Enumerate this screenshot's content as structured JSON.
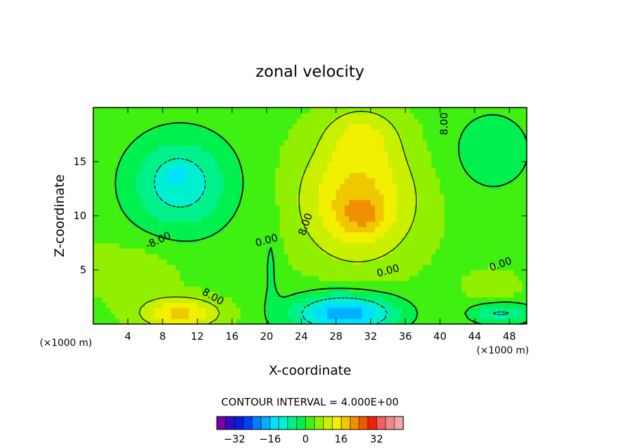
{
  "chart_data": {
    "type": "heatmap",
    "title": "zonal velocity",
    "xlabel": "X-coordinate",
    "ylabel": "Z-coordinate",
    "x_unit_left": "(×1000 m)",
    "x_unit_right": "(×1000 m)",
    "xlim": [
      0,
      50
    ],
    "ylim": [
      0,
      20
    ],
    "x_ticks": [
      4,
      8,
      12,
      16,
      20,
      24,
      28,
      32,
      36,
      40,
      44,
      48
    ],
    "y_ticks": [
      5,
      10,
      15
    ],
    "contour_interval_text": "CONTOUR INTERVAL = 4.000E+00",
    "contour_labels": [
      {
        "text": "8.00",
        "x": 40.5,
        "y": 18.5,
        "angle": -90
      },
      {
        "text": "-8.00",
        "x": 7.5,
        "y": 7.7,
        "angle": -25
      },
      {
        "text": "0.00",
        "x": 20.0,
        "y": 7.7,
        "angle": -15
      },
      {
        "text": "8.00",
        "x": 24.5,
        "y": 9.2,
        "angle": -70
      },
      {
        "text": "0.00",
        "x": 34.0,
        "y": 4.9,
        "angle": -15
      },
      {
        "text": "0.00",
        "x": 47.0,
        "y": 5.5,
        "angle": -20
      },
      {
        "text": "8.00",
        "x": 13.8,
        "y": 2.5,
        "angle": 30
      }
    ],
    "levels": [
      -36,
      -32,
      -28,
      -24,
      -20,
      -16,
      -12,
      -8,
      -4,
      0,
      4,
      8,
      12,
      16,
      20,
      24,
      28,
      32,
      36
    ],
    "colorbar_labels": [
      -32,
      -16,
      0,
      16,
      32
    ],
    "colorbar_colors": [
      "#7a00a8",
      "#2d0dc0",
      "#0a1ae0",
      "#0040f5",
      "#0080ff",
      "#00b0ff",
      "#00e0ff",
      "#00f0d0",
      "#00f08a",
      "#00f050",
      "#40f010",
      "#90f000",
      "#c8f000",
      "#f0f000",
      "#f0c800",
      "#f09000",
      "#f05800",
      "#f02000",
      "#f06060",
      "#f08a8a",
      "#f0a8a8"
    ],
    "field_features": [
      {
        "kind": "base",
        "value": 3
      },
      {
        "kind": "blob",
        "x": 30.5,
        "y": 11.5,
        "sx": 6.5,
        "sy": 5.5,
        "amp": 15
      },
      {
        "kind": "blob",
        "x": 31.0,
        "y": 17.5,
        "sx": 4.0,
        "sy": 2.5,
        "amp": 7
      },
      {
        "kind": "blob",
        "x": 31.0,
        "y": 10.0,
        "sx": 2.5,
        "sy": 1.5,
        "amp": 6
      },
      {
        "kind": "blob",
        "x": 10.0,
        "y": 13.0,
        "sx": 6.0,
        "sy": 4.5,
        "amp": -14
      },
      {
        "kind": "blob",
        "x": 9.5,
        "y": 13.8,
        "sx": 1.2,
        "sy": 0.8,
        "amp": -5
      },
      {
        "kind": "blob",
        "x": 29.0,
        "y": 1.0,
        "sx": 6.0,
        "sy": 1.8,
        "amp": -22
      },
      {
        "kind": "blob",
        "x": 10.0,
        "y": 1.0,
        "sx": 4.5,
        "sy": 1.4,
        "amp": 14
      },
      {
        "kind": "blob",
        "x": 47.0,
        "y": 1.0,
        "sx": 3.5,
        "sy": 1.0,
        "amp": -12
      },
      {
        "kind": "blob",
        "x": 46.0,
        "y": 3.5,
        "sx": 3.0,
        "sy": 1.5,
        "amp": 4
      },
      {
        "kind": "blob",
        "x": 4.0,
        "y": 5.0,
        "sx": 6.0,
        "sy": 2.5,
        "amp": 4
      },
      {
        "kind": "blob",
        "x": 20.5,
        "y": 5.5,
        "sx": 1.0,
        "sy": 5.0,
        "amp": -4
      },
      {
        "kind": "blob",
        "x": 46.0,
        "y": 16.0,
        "sx": 5.0,
        "sy": 4.0,
        "amp": -6
      }
    ]
  }
}
